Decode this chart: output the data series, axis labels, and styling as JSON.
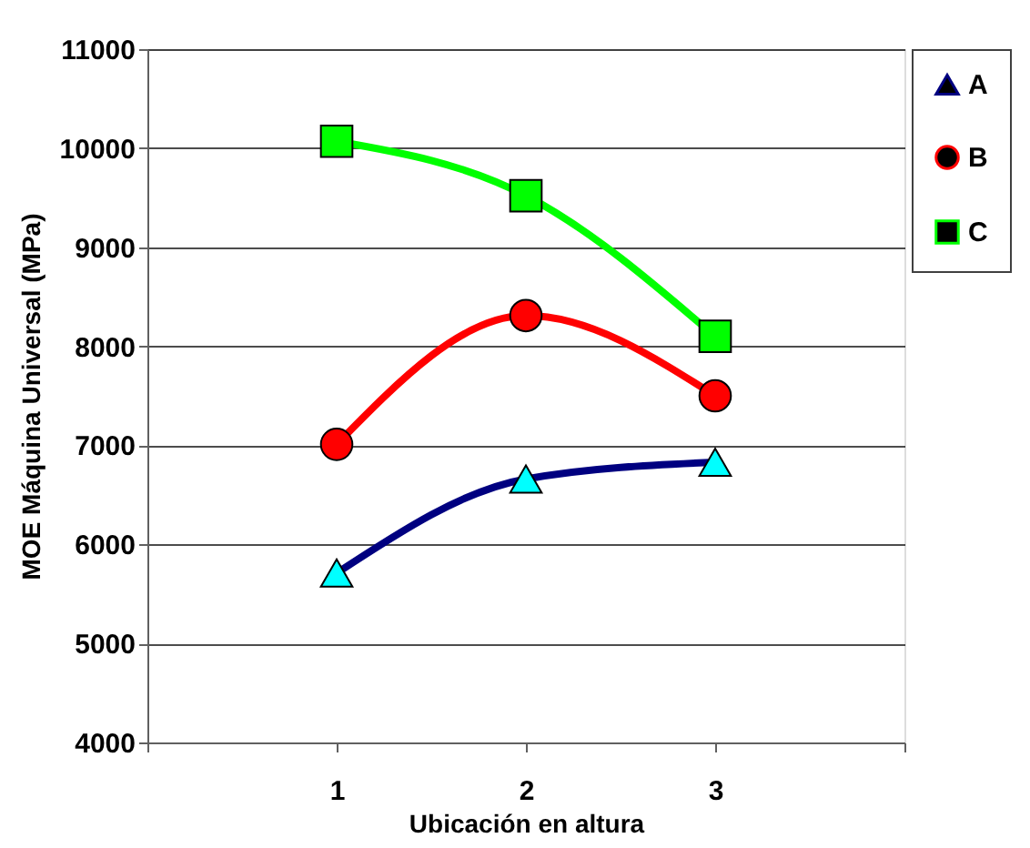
{
  "chart_data": {
    "type": "line",
    "xlabel": "Ubicación en altura",
    "ylabel": "MOE  Máquina Universal (MPa)",
    "x": [
      1,
      2,
      3
    ],
    "series": [
      {
        "name": "A",
        "color": "#000080",
        "colors": [
          "#00ffff",
          "#00ffff",
          "#00ffff"
        ],
        "marker": "triangle",
        "values": [
          5710,
          6660,
          6830
        ]
      },
      {
        "name": "B",
        "color": "#ff0000",
        "colors": [
          "#ff0000",
          "#ff0000",
          "#ff0000"
        ],
        "marker": "circle",
        "values": [
          7010,
          8310,
          7500
        ]
      },
      {
        "name": "C",
        "color": "#00ff00",
        "colors": [
          "#00ff00",
          "#00ff00",
          "#00ff00"
        ],
        "marker": "square",
        "values": [
          10070,
          9520,
          8100
        ]
      }
    ],
    "xlim": [
      0,
      4
    ],
    "xticks": [
      {
        "value": 0,
        "label": null
      },
      1,
      2,
      3,
      {
        "value": 4,
        "label": null
      }
    ],
    "ylim": [
      4000,
      11000
    ],
    "yticks": [
      4000,
      5000,
      6000,
      7000,
      8000,
      9000,
      10000,
      11000
    ],
    "grid": "y",
    "legend": "right"
  }
}
